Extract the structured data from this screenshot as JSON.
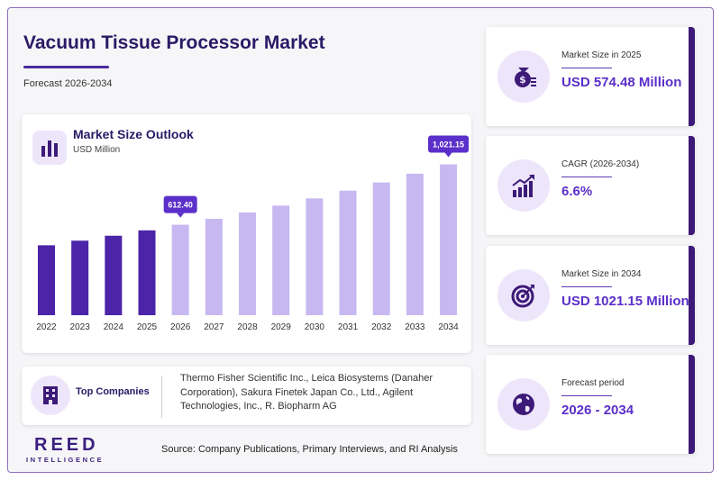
{
  "header": {
    "title": "Vacuum Tissue Processor Market",
    "subtitle": "Forecast 2026-2034"
  },
  "chart_data": {
    "type": "bar",
    "title": "Market Size Outlook",
    "unit": "USD Million",
    "categories": [
      "2022",
      "2023",
      "2024",
      "2025",
      "2026",
      "2027",
      "2028",
      "2029",
      "2030",
      "2031",
      "2032",
      "2033",
      "2034"
    ],
    "values": [
      473.4,
      504.6,
      538.0,
      574.48,
      612.4,
      652.8,
      695.9,
      741.9,
      790.9,
      843.1,
      898.7,
      958.0,
      1021.15
    ],
    "historical_through": "2025",
    "callouts": [
      {
        "category": "2026",
        "label": "612.40"
      },
      {
        "category": "2034",
        "label": "1,021.15"
      }
    ],
    "colors": {
      "historical": "#4b24a8",
      "forecast": "#c7b8f2",
      "callout": "#5b2fc9"
    }
  },
  "companies": {
    "label": "Top Companies",
    "list": "Thermo Fisher Scientific Inc., Leica Biosystems (Danaher Corporation), Sakura Finetek Japan Co., Ltd., Agilent Technologies, Inc., R. Biopharm AG"
  },
  "kpis": [
    {
      "label": "Market Size in 2025",
      "value": "USD 574.48 Million",
      "icon": "money-bag-icon"
    },
    {
      "label": "CAGR (2026-2034)",
      "value": "6.6%",
      "icon": "growth-chart-icon"
    },
    {
      "label": "Market Size in 2034",
      "value": "USD 1021.15 Million",
      "icon": "target-icon"
    },
    {
      "label": "Forecast period",
      "value": "2026 - 2034",
      "icon": "globe-icon"
    }
  ],
  "footer": {
    "logo": "REED",
    "logo_sub": "INTELLIGENCE",
    "source": "Source: Company Publications, Primary Interviews, and RI Analysis"
  },
  "colors": {
    "accent": "#5b2fc9",
    "dark": "#2a1a66",
    "kpi_bar": "#3d1a78",
    "icon_bg": "#ede6fb"
  }
}
